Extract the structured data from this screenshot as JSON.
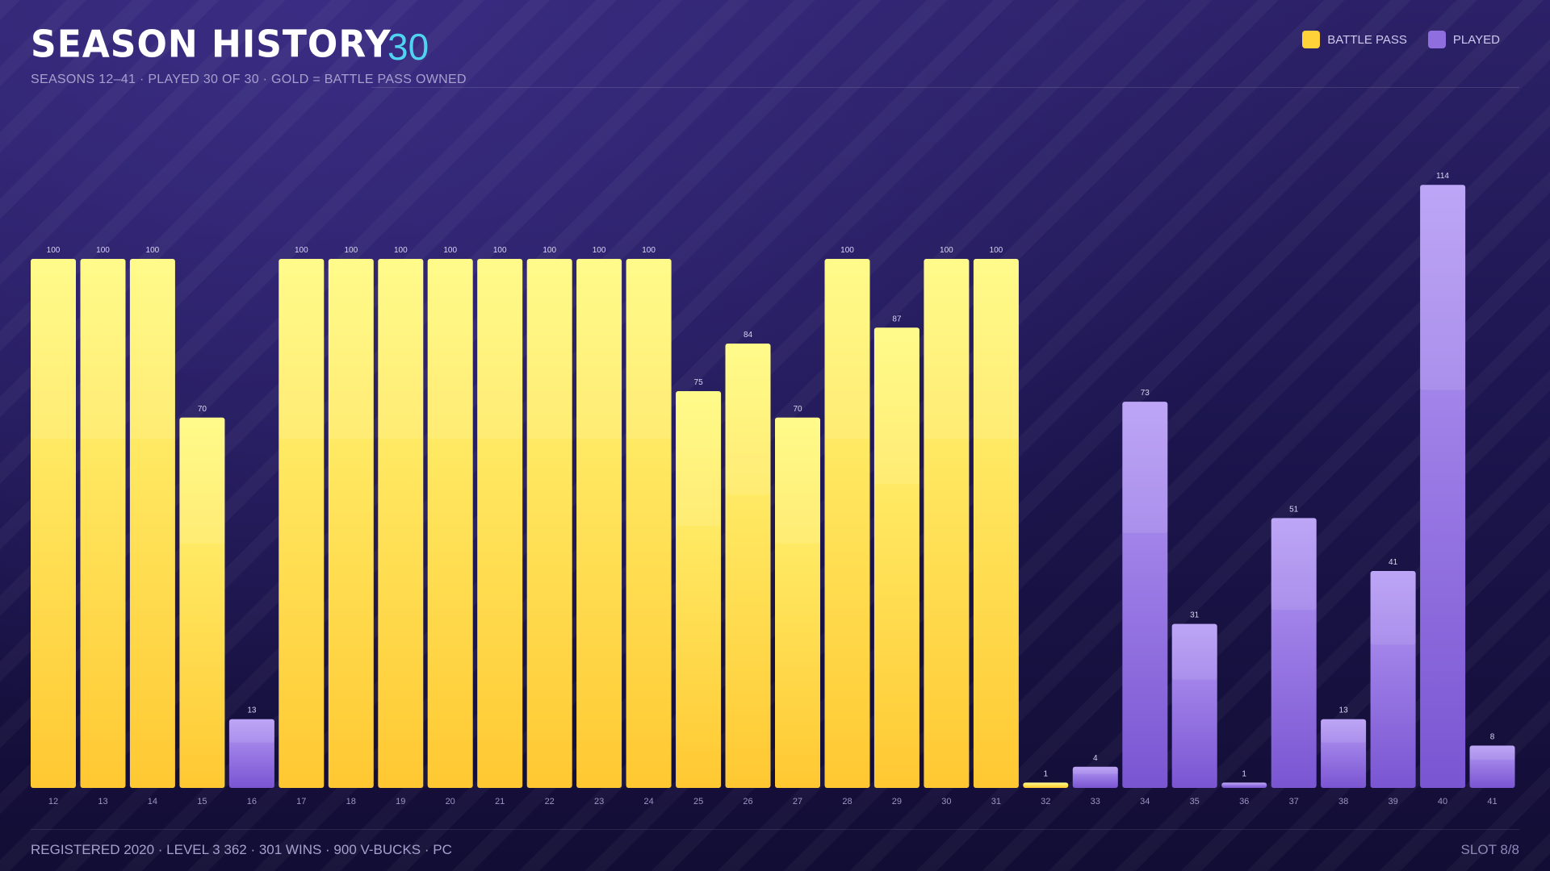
{
  "header": {
    "title": "SEASON HISTORY",
    "count": "30",
    "subtitle": "SEASONS 12–41  ·  PLAYED 30 OF 30  ·  GOLD = BATTLE PASS OWNED"
  },
  "legend": {
    "items": [
      {
        "label": "BATTLE PASS",
        "color": "#ffd23a"
      },
      {
        "label": "PLAYED",
        "color": "#8f6ee0"
      }
    ]
  },
  "footer": {
    "stats": "REGISTERED 2020  ·  LEVEL 3 362  ·  301 WINS  ·  900 V-BUCKS  ·  PC",
    "slot": "SLOT 8/8"
  },
  "colors": {
    "battle_pass_top": "#fffb7e",
    "battle_pass_bottom": "#ffc832",
    "played_top": "#b69cf5",
    "played_bottom": "#7a55d2",
    "accent": "#4fd3f0"
  },
  "chart_data": {
    "type": "bar",
    "title": "SEASON HISTORY",
    "xlabel": "",
    "ylabel": "",
    "ylim": [
      0,
      120
    ],
    "grid": false,
    "legend_position": "top-right",
    "categories": [
      "12",
      "13",
      "14",
      "15",
      "16",
      "17",
      "18",
      "19",
      "20",
      "21",
      "22",
      "23",
      "24",
      "25",
      "26",
      "27",
      "28",
      "29",
      "30",
      "31",
      "32",
      "33",
      "34",
      "35",
      "36",
      "37",
      "38",
      "39",
      "40",
      "41"
    ],
    "values": [
      100,
      100,
      100,
      70,
      13,
      100,
      100,
      100,
      100,
      100,
      100,
      100,
      100,
      75,
      84,
      70,
      100,
      87,
      100,
      100,
      1,
      4,
      73,
      31,
      1,
      51,
      13,
      41,
      114,
      8
    ],
    "battle_pass": [
      true,
      true,
      true,
      true,
      false,
      true,
      true,
      true,
      true,
      true,
      true,
      true,
      true,
      true,
      true,
      true,
      true,
      true,
      true,
      true,
      true,
      false,
      false,
      false,
      false,
      false,
      false,
      false,
      false,
      false
    ]
  }
}
